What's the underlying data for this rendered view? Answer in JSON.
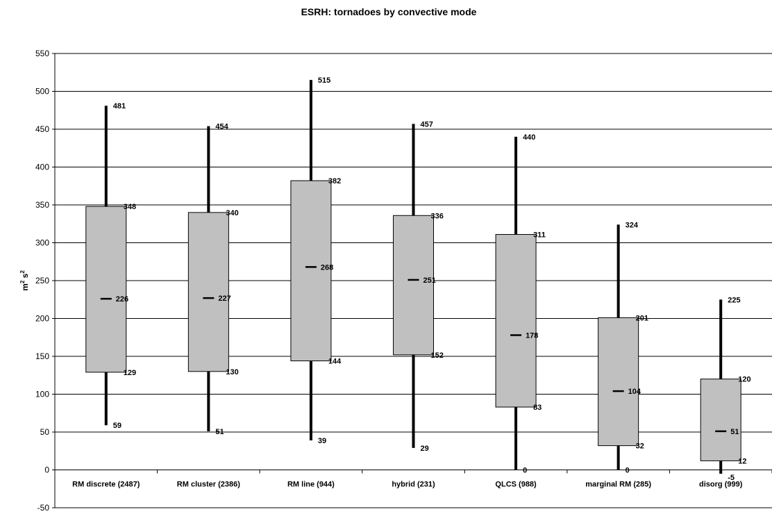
{
  "chart_data": {
    "type": "box",
    "title": "ESRH:  tornadoes by convective mode",
    "ylabel": {
      "base": "m",
      "sup1": "2",
      "mid": " s",
      "sup2": "2"
    },
    "ylim": [
      -50,
      550
    ],
    "yticks": [
      -50,
      0,
      50,
      100,
      150,
      200,
      250,
      300,
      350,
      400,
      450,
      500,
      550
    ],
    "grid": true,
    "box_fill": "#c0c0c0",
    "line_color": "#000000",
    "categories": [
      {
        "label": "RM discrete (2487)",
        "min": 59,
        "q1": 129,
        "median": 226,
        "q3": 348,
        "max": 481
      },
      {
        "label": "RM cluster (2386)",
        "min": 51,
        "q1": 130,
        "median": 227,
        "q3": 340,
        "max": 454
      },
      {
        "label": "RM line (944)",
        "min": 39,
        "q1": 144,
        "median": 268,
        "q3": 382,
        "max": 515
      },
      {
        "label": "hybrid (231)",
        "min": 29,
        "q1": 152,
        "median": 251,
        "q3": 336,
        "max": 457
      },
      {
        "label": "QLCS (988)",
        "min": 0,
        "q1": 83,
        "median": 178,
        "q3": 311,
        "max": 440
      },
      {
        "label": "marginal RM (285)",
        "min": 0,
        "q1": 32,
        "median": 104,
        "q3": 201,
        "max": 324
      },
      {
        "label": "disorg (999)",
        "min": -5,
        "q1": 12,
        "median": 51,
        "q3": 120,
        "max": 225
      }
    ]
  }
}
